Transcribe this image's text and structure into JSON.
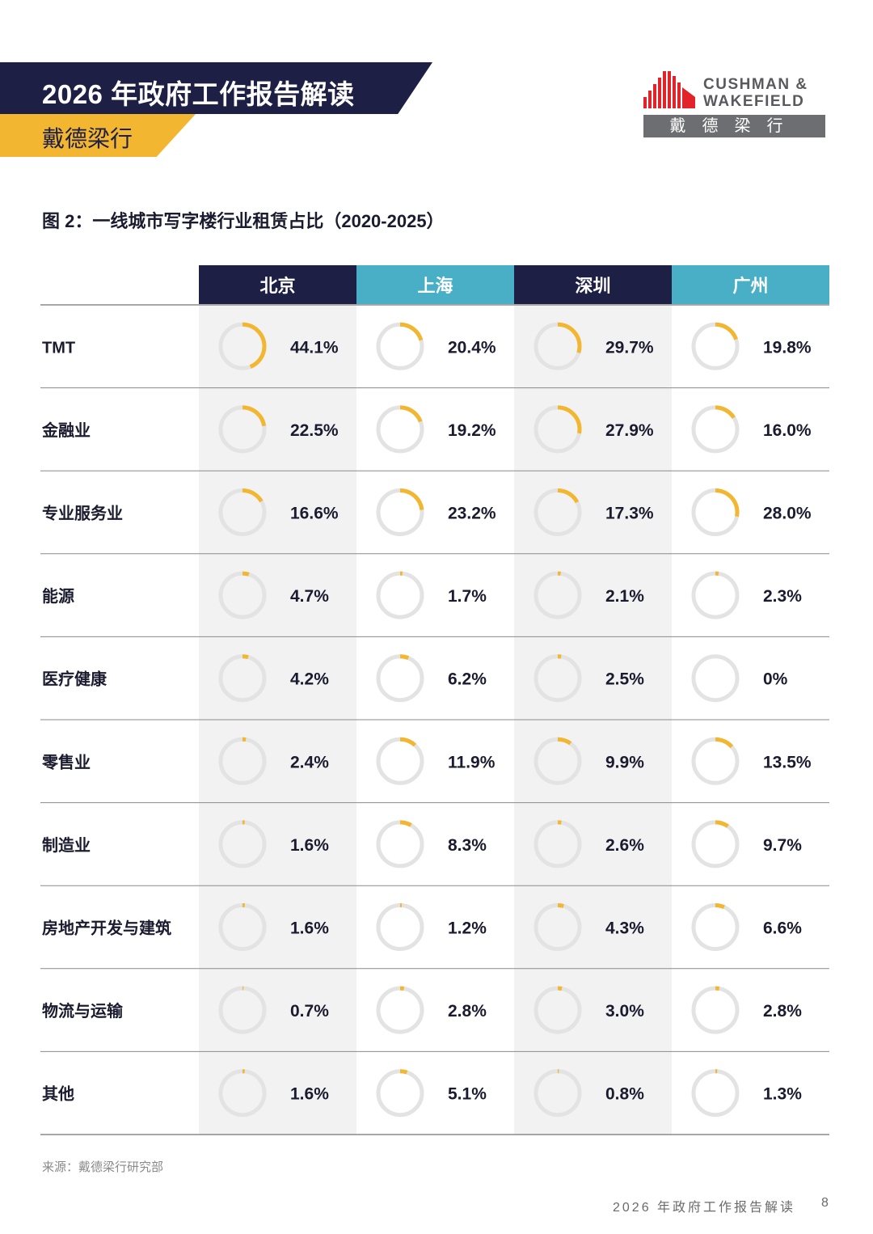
{
  "header": {
    "title": "2026 年政府工作报告解读",
    "subtitle": "戴德梁行"
  },
  "logo": {
    "line1": "CUSHMAN &",
    "line2": "WAKEFIELD",
    "cn": "戴德梁行"
  },
  "figure_title": "图 2：一线城市写字楼行业租赁占比（2020-2025）",
  "chart_data": {
    "type": "table",
    "title": "图 2：一线城市写字楼行业租赁占比（2020-2025）",
    "columns": [
      {
        "name": "北京",
        "header_color": "#1e1f45"
      },
      {
        "name": "上海",
        "header_color": "#48afc6"
      },
      {
        "name": "深圳",
        "header_color": "#1e1f45"
      },
      {
        "name": "广州",
        "header_color": "#48afc6"
      }
    ],
    "rows": [
      {
        "label": "TMT",
        "values": [
          44.1,
          20.4,
          29.7,
          19.8
        ],
        "text": [
          "44.1%",
          "20.4%",
          "29.7%",
          "19.8%"
        ]
      },
      {
        "label": "金融业",
        "values": [
          22.5,
          19.2,
          27.9,
          16.0
        ],
        "text": [
          "22.5%",
          "19.2%",
          "27.9%",
          "16.0%"
        ]
      },
      {
        "label": "专业服务业",
        "values": [
          16.6,
          23.2,
          17.3,
          28.0
        ],
        "text": [
          "16.6%",
          "23.2%",
          "17.3%",
          "28.0%"
        ]
      },
      {
        "label": "能源",
        "values": [
          4.7,
          1.7,
          2.1,
          2.3
        ],
        "text": [
          "4.7%",
          "1.7%",
          "2.1%",
          "2.3%"
        ]
      },
      {
        "label": "医疗健康",
        "values": [
          4.2,
          6.2,
          2.5,
          0
        ],
        "text": [
          "4.2%",
          "6.2%",
          "2.5%",
          "0%"
        ]
      },
      {
        "label": "零售业",
        "values": [
          2.4,
          11.9,
          9.9,
          13.5
        ],
        "text": [
          "2.4%",
          "11.9%",
          "9.9%",
          "13.5%"
        ]
      },
      {
        "label": "制造业",
        "values": [
          1.6,
          8.3,
          2.6,
          9.7
        ],
        "text": [
          "1.6%",
          "8.3%",
          "2.6%",
          "9.7%"
        ]
      },
      {
        "label": "房地产开发与建筑",
        "values": [
          1.6,
          1.2,
          4.3,
          6.6
        ],
        "text": [
          "1.6%",
          "1.2%",
          "4.3%",
          "6.6%"
        ]
      },
      {
        "label": "物流与运输",
        "values": [
          0.7,
          2.8,
          3.0,
          2.8
        ],
        "text": [
          "0.7%",
          "2.8%",
          "3.0%",
          "2.8%"
        ]
      },
      {
        "label": "其他",
        "values": [
          1.6,
          5.1,
          0.8,
          1.3
        ],
        "text": [
          "1.6%",
          "5.1%",
          "0.8%",
          "1.3%"
        ]
      }
    ],
    "colors": {
      "accent": "#f2b630",
      "ring": "#e3e3e3",
      "shade": "#f2f2f2",
      "navy": "#1e1f45",
      "teal": "#48afc6"
    }
  },
  "source": "来源：戴德梁行研究部",
  "footer": {
    "text": "2026 年政府工作报告解读",
    "page": "8"
  }
}
